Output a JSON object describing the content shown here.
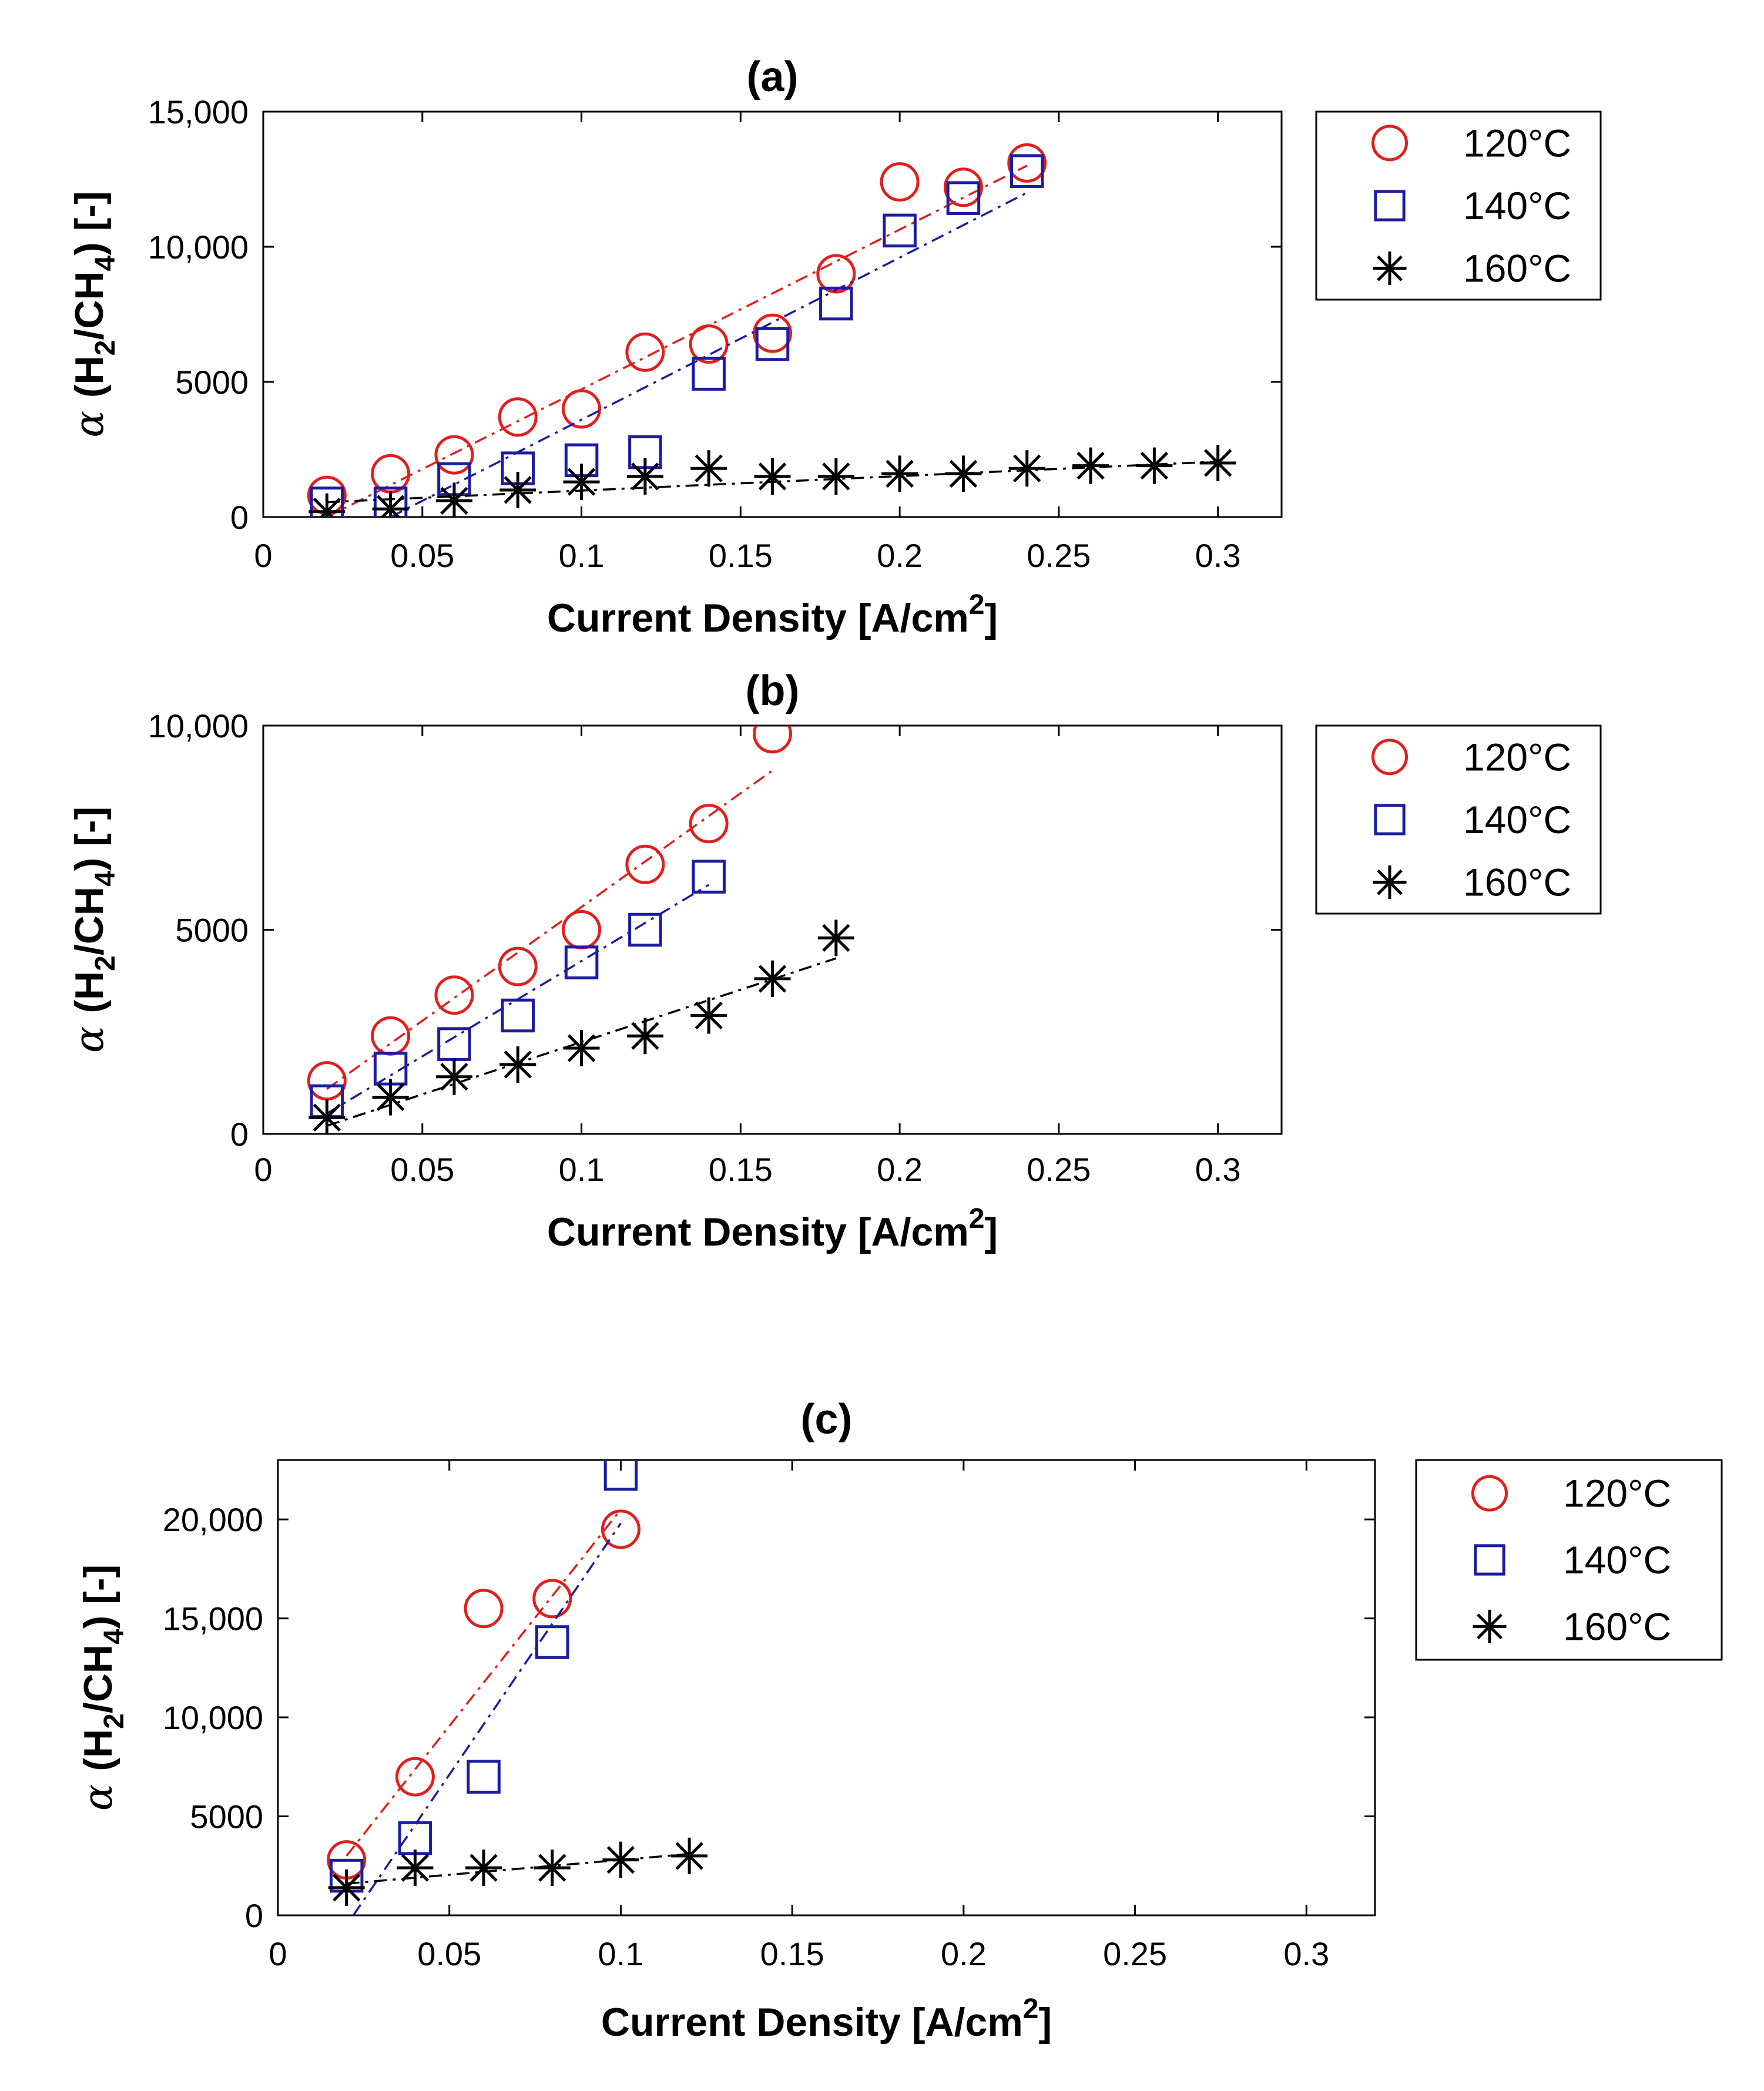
{
  "colors": {
    "s120": "#e0201c",
    "s140": "#1c1ca0",
    "s160": "#000000"
  },
  "chart_data": [
    {
      "type": "scatter",
      "title": "(a)",
      "xlabel": "Current Density [A/cm",
      "xlabel_sup": "2",
      "xlabel_end": "]",
      "ylabel": {
        "alpha": "α",
        "pre": "(H",
        "sub1": "2",
        "mid": "/CH",
        "sub2": "4",
        "post": ") [-]"
      },
      "xlim": [
        0,
        0.32
      ],
      "ylim": [
        0,
        15000
      ],
      "xticks": [
        0,
        0.05,
        0.1,
        0.15,
        0.2,
        0.25,
        0.3
      ],
      "xtick_labels": [
        "0",
        "0.05",
        "0.1",
        "0.15",
        "0.2",
        "0.25",
        "0.3"
      ],
      "yticks": [
        0,
        5000,
        10000,
        15000
      ],
      "ytick_labels": [
        "0",
        "5000",
        "10,000",
        "15,000"
      ],
      "legend_position": "outside-right",
      "series": [
        {
          "name": "120°C",
          "marker": "circle",
          "color_key": "s120",
          "x": [
            0.02,
            0.04,
            0.06,
            0.08,
            0.1,
            0.12,
            0.14,
            0.16,
            0.18,
            0.2,
            0.22,
            0.24
          ],
          "y": [
            800,
            1600,
            2300,
            3700,
            4000,
            6100,
            6400,
            6800,
            9000,
            12400,
            12200,
            13100
          ],
          "fit": {
            "x": [
              0.02,
              0.24
            ],
            "y": [
              0,
              13000
            ]
          }
        },
        {
          "name": "140°C",
          "marker": "square",
          "color_key": "s140",
          "x": [
            0.02,
            0.04,
            0.06,
            0.08,
            0.1,
            0.12,
            0.14,
            0.16,
            0.18,
            0.2,
            0.22,
            0.24
          ],
          "y": [
            500,
            500,
            1400,
            1800,
            2100,
            2400,
            5300,
            6400,
            7900,
            10600,
            11800,
            12800
          ],
          "fit": {
            "x": [
              0.04,
              0.24
            ],
            "y": [
              0,
              12000
            ]
          }
        },
        {
          "name": "160°C",
          "marker": "star",
          "color_key": "s160",
          "x": [
            0.02,
            0.04,
            0.06,
            0.08,
            0.1,
            0.12,
            0.14,
            0.16,
            0.18,
            0.2,
            0.22,
            0.24,
            0.26,
            0.28,
            0.3
          ],
          "y": [
            200,
            300,
            600,
            1000,
            1300,
            1500,
            1800,
            1500,
            1500,
            1600,
            1600,
            1800,
            1900,
            1900,
            2000
          ],
          "fit": {
            "x": [
              0.02,
              0.3
            ],
            "y": [
              550,
              2050
            ]
          }
        }
      ]
    },
    {
      "type": "scatter",
      "title": "(b)",
      "xlabel": "Current Density [A/cm",
      "xlabel_sup": "2",
      "xlabel_end": "]",
      "ylabel": {
        "alpha": "α",
        "pre": "(H",
        "sub1": "2",
        "mid": "/CH",
        "sub2": "4",
        "post": ") [-]"
      },
      "xlim": [
        0,
        0.32
      ],
      "ylim": [
        0,
        10000
      ],
      "xticks": [
        0,
        0.05,
        0.1,
        0.15,
        0.2,
        0.25,
        0.3
      ],
      "xtick_labels": [
        "0",
        "0.05",
        "0.1",
        "0.15",
        "0.2",
        "0.25",
        "0.3"
      ],
      "yticks": [
        0,
        5000,
        10000
      ],
      "ytick_labels": [
        "0",
        "5000",
        "10,000"
      ],
      "legend_position": "outside-right",
      "series": [
        {
          "name": "120°C",
          "marker": "circle",
          "color_key": "s120",
          "x": [
            0.02,
            0.04,
            0.06,
            0.08,
            0.1,
            0.12,
            0.14,
            0.16
          ],
          "y": [
            1300,
            2400,
            3400,
            4100,
            5000,
            6600,
            7600,
            9800
          ],
          "fit": {
            "x": [
              0.02,
              0.16
            ],
            "y": [
              1100,
              8900
            ]
          }
        },
        {
          "name": "140°C",
          "marker": "square",
          "color_key": "s140",
          "x": [
            0.02,
            0.04,
            0.06,
            0.08,
            0.1,
            0.12,
            0.14
          ],
          "y": [
            800,
            1600,
            2200,
            2900,
            4200,
            5000,
            6300
          ],
          "fit": {
            "x": [
              0.02,
              0.14
            ],
            "y": [
              500,
              6100
            ]
          }
        },
        {
          "name": "160°C",
          "marker": "star",
          "color_key": "s160",
          "x": [
            0.02,
            0.04,
            0.06,
            0.08,
            0.1,
            0.12,
            0.14,
            0.16,
            0.18
          ],
          "y": [
            400,
            900,
            1400,
            1700,
            2100,
            2400,
            2900,
            3800,
            4800
          ],
          "fit": {
            "x": [
              0.02,
              0.18
            ],
            "y": [
              200,
              4300
            ]
          }
        }
      ]
    },
    {
      "type": "scatter",
      "title": "(c)",
      "xlabel": "Current Density [A/cm",
      "xlabel_sup": "2",
      "xlabel_end": "]",
      "ylabel": {
        "alpha": "α",
        "pre": "(H",
        "sub1": "2",
        "mid": "/CH",
        "sub2": "4",
        "post": ") [-]"
      },
      "xlim": [
        0,
        0.32
      ],
      "ylim": [
        0,
        23000
      ],
      "xticks": [
        0,
        0.05,
        0.1,
        0.15,
        0.2,
        0.25,
        0.3
      ],
      "xtick_labels": [
        "0",
        "0.05",
        "0.1",
        "0.15",
        "0.2",
        "0.25",
        "0.3"
      ],
      "yticks": [
        0,
        5000,
        10000,
        15000,
        20000
      ],
      "ytick_labels": [
        "0",
        "5000",
        "10,000",
        "15,000",
        "20,000"
      ],
      "legend_position": "outside-right",
      "series": [
        {
          "name": "120°C",
          "marker": "circle",
          "color_key": "s120",
          "x": [
            0.02,
            0.04,
            0.06,
            0.08,
            0.1
          ],
          "y": [
            2800,
            7000,
            15500,
            16000,
            19500
          ],
          "fit": {
            "x": [
              0.02,
              0.1
            ],
            "y": [
              3000,
              20500
            ]
          }
        },
        {
          "name": "140°C",
          "marker": "square",
          "color_key": "s140",
          "x": [
            0.02,
            0.04,
            0.06,
            0.08,
            0.1
          ],
          "y": [
            2000,
            3900,
            7000,
            13800,
            22300
          ],
          "fit": {
            "x": [
              0.022,
              0.1
            ],
            "y": [
              0,
              19800
            ]
          }
        },
        {
          "name": "160°C",
          "marker": "star",
          "color_key": "s160",
          "x": [
            0.02,
            0.04,
            0.06,
            0.08,
            0.1,
            0.12
          ],
          "y": [
            1400,
            2400,
            2400,
            2400,
            2800,
            3000
          ],
          "fit": {
            "x": [
              0.02,
              0.12
            ],
            "y": [
              1600,
              3100
            ]
          }
        }
      ]
    }
  ]
}
